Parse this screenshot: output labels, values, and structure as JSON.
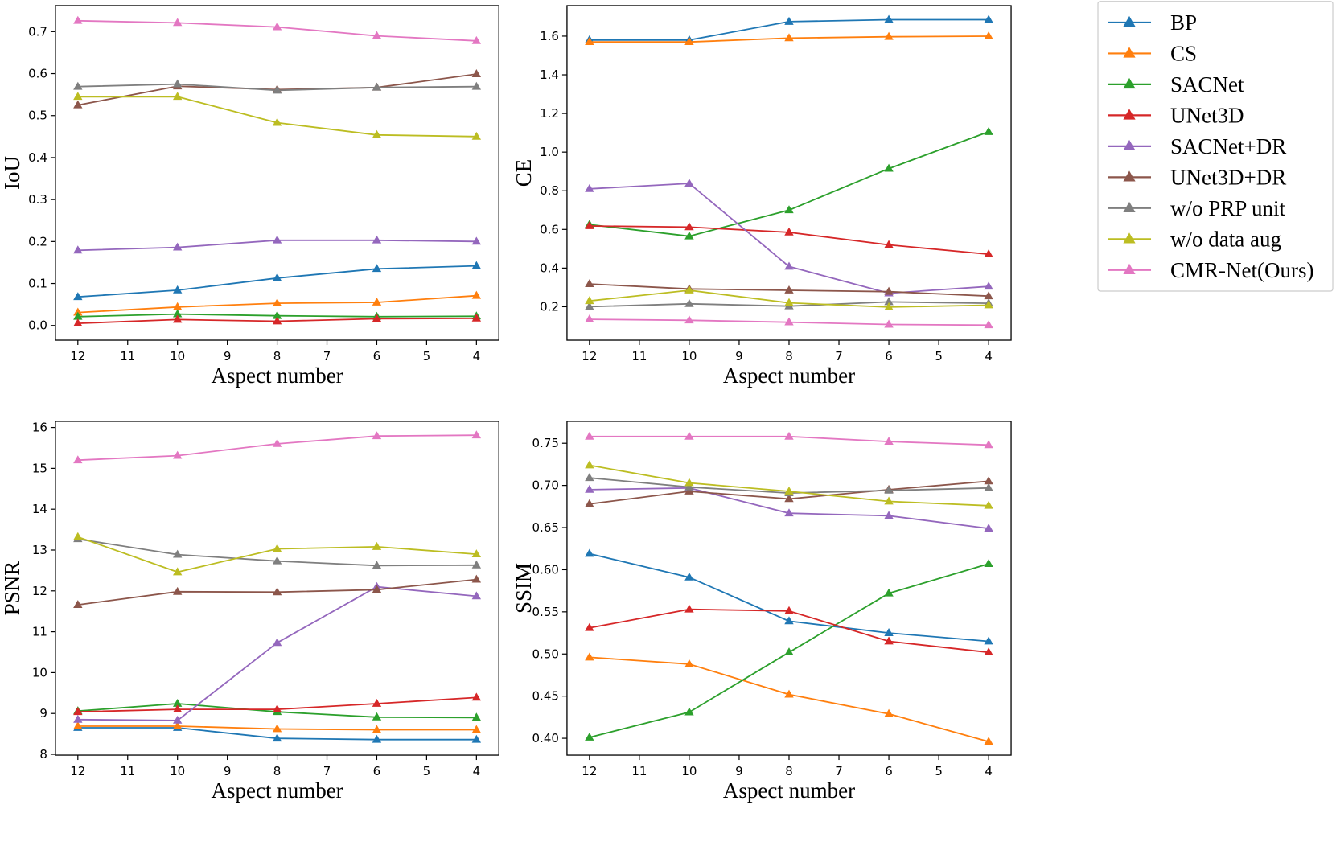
{
  "legend": {
    "entries": [
      {
        "name": "BP",
        "color": "#1f77b4"
      },
      {
        "name": "CS",
        "color": "#ff7f0e"
      },
      {
        "name": "SACNet",
        "color": "#2ca02c"
      },
      {
        "name": "UNet3D",
        "color": "#d62728"
      },
      {
        "name": "SACNet+DR",
        "color": "#9467bd"
      },
      {
        "name": "UNet3D+DR",
        "color": "#8c564b"
      },
      {
        "name": "w/o PRP unit",
        "color": "#7f7f7f"
      },
      {
        "name": "w/o data aug",
        "color": "#bcbd22"
      },
      {
        "name": "CMR-Net(Ours)",
        "color": "#e377c2"
      }
    ]
  },
  "chart_data": [
    {
      "type": "line",
      "id": "iou",
      "xlabel": "Aspect number",
      "ylabel": "IoU",
      "x": [
        12,
        10,
        8,
        6,
        4
      ],
      "xticks": [
        12,
        11,
        10,
        9,
        8,
        7,
        6,
        5,
        4
      ],
      "xticklabels": [
        "12",
        "11",
        "10",
        "9",
        "8",
        "7",
        "6",
        "5",
        "4"
      ],
      "xlim": [
        12.45,
        3.55
      ],
      "ylim": [
        -0.035,
        0.762
      ],
      "yticks": [
        0.0,
        0.1,
        0.2,
        0.3,
        0.4,
        0.5,
        0.6,
        0.7
      ],
      "yticklabels": [
        "0.0",
        "0.1",
        "0.2",
        "0.3",
        "0.4",
        "0.5",
        "0.6",
        "0.7"
      ],
      "series": [
        {
          "name": "BP",
          "values": [
            0.068,
            0.084,
            0.113,
            0.135,
            0.142
          ]
        },
        {
          "name": "CS",
          "values": [
            0.031,
            0.044,
            0.053,
            0.055,
            0.071
          ]
        },
        {
          "name": "SACNet",
          "values": [
            0.021,
            0.027,
            0.023,
            0.021,
            0.022
          ]
        },
        {
          "name": "UNet3D",
          "values": [
            0.005,
            0.014,
            0.01,
            0.016,
            0.017
          ]
        },
        {
          "name": "SACNet+DR",
          "values": [
            0.179,
            0.186,
            0.203,
            0.203,
            0.2
          ]
        },
        {
          "name": "UNet3D+DR",
          "values": [
            0.525,
            0.57,
            0.562,
            0.567,
            0.599
          ]
        },
        {
          "name": "w/o PRP unit",
          "values": [
            0.569,
            0.575,
            0.56,
            0.567,
            0.569
          ]
        },
        {
          "name": "w/o data aug",
          "values": [
            0.545,
            0.545,
            0.483,
            0.454,
            0.45
          ]
        },
        {
          "name": "CMR-Net(Ours)",
          "values": [
            0.726,
            0.721,
            0.711,
            0.69,
            0.678
          ]
        }
      ]
    },
    {
      "type": "line",
      "id": "ce",
      "xlabel": "Aspect number",
      "ylabel": "CE",
      "x": [
        12,
        10,
        8,
        6,
        4
      ],
      "xticks": [
        12,
        11,
        10,
        9,
        8,
        7,
        6,
        5,
        4
      ],
      "xticklabels": [
        "12",
        "11",
        "10",
        "9",
        "8",
        "7",
        "6",
        "5",
        "4"
      ],
      "xlim": [
        12.45,
        3.55
      ],
      "ylim": [
        0.027,
        1.758
      ],
      "yticks": [
        0.2,
        0.4,
        0.6,
        0.8,
        1.0,
        1.2,
        1.4,
        1.6
      ],
      "yticklabels": [
        "0.2",
        "0.4",
        "0.6",
        "0.8",
        "1.0",
        "1.2",
        "1.4",
        "1.6"
      ],
      "series": [
        {
          "name": "BP",
          "values": [
            1.58,
            1.58,
            1.675,
            1.685,
            1.685
          ]
        },
        {
          "name": "CS",
          "values": [
            1.57,
            1.57,
            1.59,
            1.597,
            1.6
          ]
        },
        {
          "name": "SACNet",
          "values": [
            0.625,
            0.565,
            0.7,
            0.915,
            1.105
          ]
        },
        {
          "name": "UNet3D",
          "values": [
            0.618,
            0.612,
            0.585,
            0.52,
            0.472
          ]
        },
        {
          "name": "SACNet+DR",
          "values": [
            0.81,
            0.838,
            0.408,
            0.27,
            0.305
          ]
        },
        {
          "name": "UNet3D+DR",
          "values": [
            0.318,
            0.292,
            0.285,
            0.278,
            0.255
          ]
        },
        {
          "name": "w/o PRP unit",
          "values": [
            0.2,
            0.215,
            0.203,
            0.225,
            0.218
          ]
        },
        {
          "name": "w/o data aug",
          "values": [
            0.23,
            0.285,
            0.22,
            0.198,
            0.208
          ]
        },
        {
          "name": "CMR-Net(Ours)",
          "values": [
            0.135,
            0.13,
            0.12,
            0.108,
            0.105
          ]
        }
      ]
    },
    {
      "type": "line",
      "id": "psnr",
      "xlabel": "Aspect number",
      "ylabel": "PSNR",
      "x": [
        12,
        10,
        8,
        6,
        4
      ],
      "xticks": [
        12,
        11,
        10,
        9,
        8,
        7,
        6,
        5,
        4
      ],
      "xticklabels": [
        "12",
        "11",
        "10",
        "9",
        "8",
        "7",
        "6",
        "5",
        "4"
      ],
      "xlim": [
        12.45,
        3.55
      ],
      "ylim": [
        7.98,
        16.15
      ],
      "yticks": [
        8,
        9,
        10,
        11,
        12,
        13,
        14,
        15,
        16
      ],
      "yticklabels": [
        "8",
        "9",
        "10",
        "11",
        "12",
        "13",
        "14",
        "15",
        "16"
      ],
      "series": [
        {
          "name": "BP",
          "values": [
            8.65,
            8.65,
            8.39,
            8.36,
            8.36
          ]
        },
        {
          "name": "CS",
          "values": [
            8.69,
            8.69,
            8.62,
            8.6,
            8.6
          ]
        },
        {
          "name": "SACNet",
          "values": [
            9.06,
            9.24,
            9.04,
            8.91,
            8.9
          ]
        },
        {
          "name": "UNet3D",
          "values": [
            9.04,
            9.1,
            9.1,
            9.24,
            9.39
          ]
        },
        {
          "name": "SACNet+DR",
          "values": [
            8.85,
            8.83,
            10.73,
            12.1,
            11.87
          ]
        },
        {
          "name": "UNet3D+DR",
          "values": [
            11.66,
            11.98,
            11.97,
            12.03,
            12.28
          ]
        },
        {
          "name": "w/o PRP unit",
          "values": [
            13.27,
            12.89,
            12.73,
            12.62,
            12.63
          ]
        },
        {
          "name": "w/o data aug",
          "values": [
            13.32,
            12.46,
            13.03,
            13.08,
            12.9
          ]
        },
        {
          "name": "CMR-Net(Ours)",
          "values": [
            15.2,
            15.31,
            15.6,
            15.79,
            15.81
          ]
        }
      ]
    },
    {
      "type": "line",
      "id": "ssim",
      "xlabel": "Aspect number",
      "ylabel": "SSIM",
      "x": [
        12,
        10,
        8,
        6,
        4
      ],
      "xticks": [
        12,
        11,
        10,
        9,
        8,
        7,
        6,
        5,
        4
      ],
      "xticklabels": [
        "12",
        "11",
        "10",
        "9",
        "8",
        "7",
        "6",
        "5",
        "4"
      ],
      "xlim": [
        12.45,
        3.55
      ],
      "ylim": [
        0.38,
        0.776
      ],
      "yticks": [
        0.4,
        0.45,
        0.5,
        0.55,
        0.6,
        0.65,
        0.7,
        0.75
      ],
      "yticklabels": [
        "0.40",
        "0.45",
        "0.50",
        "0.55",
        "0.60",
        "0.65",
        "0.70",
        "0.75"
      ],
      "series": [
        {
          "name": "BP",
          "values": [
            0.619,
            0.591,
            0.539,
            0.525,
            0.515
          ]
        },
        {
          "name": "CS",
          "values": [
            0.496,
            0.488,
            0.452,
            0.429,
            0.396
          ]
        },
        {
          "name": "SACNet",
          "values": [
            0.401,
            0.431,
            0.502,
            0.572,
            0.607
          ]
        },
        {
          "name": "UNet3D",
          "values": [
            0.531,
            0.553,
            0.551,
            0.515,
            0.502
          ]
        },
        {
          "name": "SACNet+DR",
          "values": [
            0.695,
            0.697,
            0.667,
            0.664,
            0.649
          ]
        },
        {
          "name": "UNet3D+DR",
          "values": [
            0.678,
            0.693,
            0.684,
            0.695,
            0.705
          ]
        },
        {
          "name": "w/o PRP unit",
          "values": [
            0.709,
            0.698,
            0.691,
            0.694,
            0.697
          ]
        },
        {
          "name": "w/o data aug",
          "values": [
            0.724,
            0.703,
            0.693,
            0.681,
            0.676
          ]
        },
        {
          "name": "CMR-Net(Ours)",
          "values": [
            0.758,
            0.758,
            0.758,
            0.752,
            0.748
          ]
        }
      ]
    }
  ]
}
